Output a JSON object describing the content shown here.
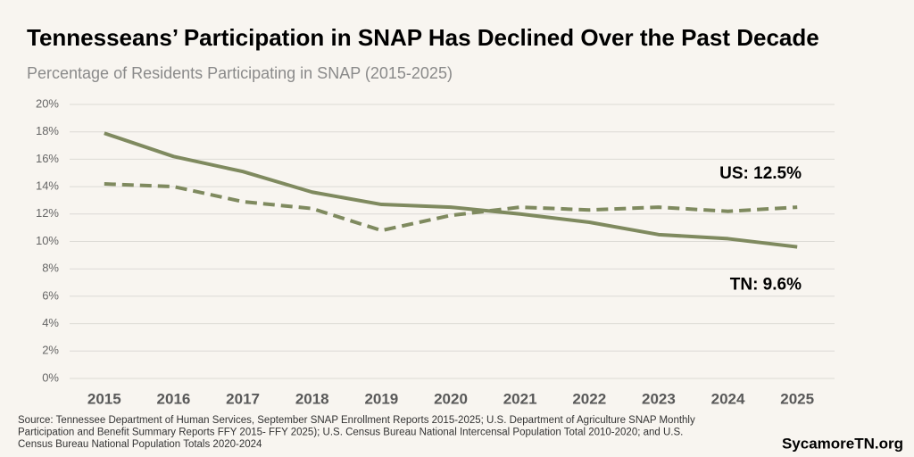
{
  "chart_data": {
    "type": "line",
    "title": "Tennesseans’ Participation in SNAP Has Declined Over the Past Decade",
    "subtitle": "Percentage of Residents Participating in SNAP (2015-2025)",
    "categories": [
      "2015",
      "2016",
      "2017",
      "2018",
      "2019",
      "2020",
      "2021",
      "2022",
      "2023",
      "2024",
      "2025"
    ],
    "series": [
      {
        "color": "#7f8a5f",
        "dash": false,
        "values": [
          17.9,
          16.2,
          15.1,
          13.6,
          12.7,
          12.5,
          12.0,
          11.4,
          10.5,
          10.2,
          9.6
        ]
      },
      {
        "color": "#7f8a5f",
        "dash": true,
        "values": [
          14.2,
          14.0,
          12.9,
          12.4,
          10.8,
          11.9,
          12.5,
          12.3,
          12.5,
          12.2,
          12.5
        ]
      }
    ],
    "annotations": [
      "TN: 9.6%",
      "US: 12.5%"
    ],
    "ylim": [
      0,
      20
    ],
    "yticks": [
      {
        "value": 0,
        "label": "0%"
      },
      {
        "value": 2,
        "label": "2%"
      },
      {
        "value": 4,
        "label": "4%"
      },
      {
        "value": 6,
        "label": "6%"
      },
      {
        "value": 8,
        "label": "8%"
      },
      {
        "value": 10,
        "label": "10%"
      },
      {
        "value": 12,
        "label": "12%"
      },
      {
        "value": 14,
        "label": "14%"
      },
      {
        "value": 16,
        "label": "16%"
      },
      {
        "value": 18,
        "label": "18%"
      },
      {
        "value": 20,
        "label": "20%"
      }
    ],
    "grid": true,
    "source": [
      "Source: Tennessee Department of Human Services, September SNAP Enrollment Reports 2015-2025; U.S. Department of Agriculture SNAP Monthly",
      "Participation and Benefit Summary Reports FFY 2015- FFY 2025); U.S. Census Bureau National Intercensal Population Total 2010-2020; and U.S.",
      "Census Bureau National Population Totals 2020-2024"
    ],
    "brand": "SycamoreTN.org"
  }
}
